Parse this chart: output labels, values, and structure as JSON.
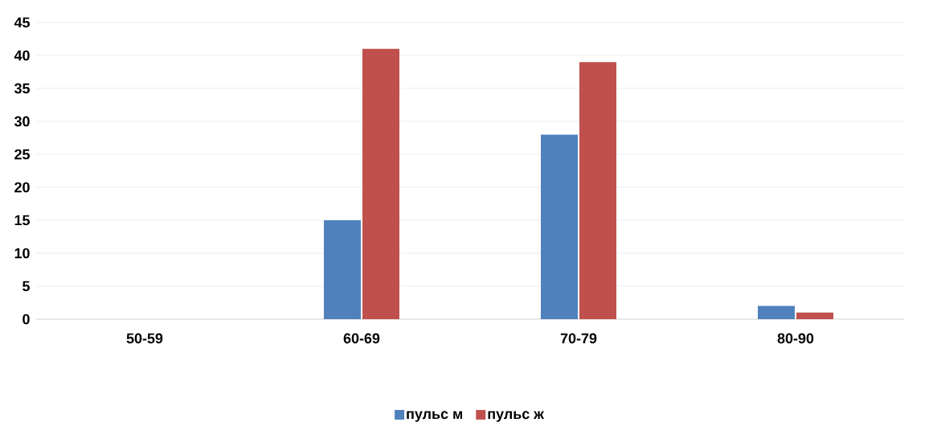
{
  "chart_data": {
    "type": "bar",
    "categories": [
      "50-59",
      "60-69",
      "70-79",
      "80-90"
    ],
    "series": [
      {
        "name": "пульс м",
        "color": "#4f81bd",
        "values": [
          0,
          15,
          28,
          2
        ]
      },
      {
        "name": "пульс ж",
        "color": "#c0504d",
        "values": [
          0,
          41,
          39,
          1
        ]
      }
    ],
    "ylim": [
      0,
      45
    ],
    "yticks": [
      0,
      5,
      10,
      15,
      20,
      25,
      30,
      35,
      40,
      45
    ],
    "grid": "y",
    "legend": "bottom"
  }
}
